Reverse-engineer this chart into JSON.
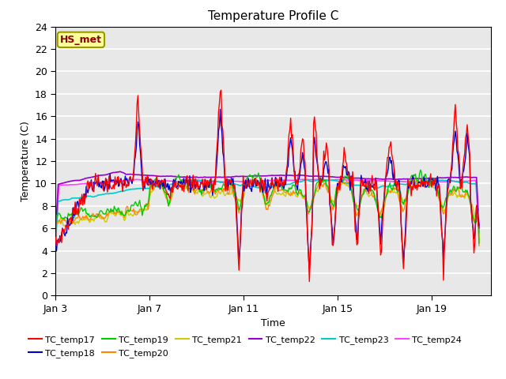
{
  "title": "Temperature Profile C",
  "xlabel": "Time",
  "ylabel": "Temperature (C)",
  "ylim": [
    0,
    24
  ],
  "yticks": [
    0,
    2,
    4,
    6,
    8,
    10,
    12,
    14,
    16,
    18,
    20,
    22,
    24
  ],
  "xtick_labels": [
    "Jan 3",
    "Jan 7",
    "Jan 11",
    "Jan 15",
    "Jan 19"
  ],
  "xtick_vals": [
    0,
    4,
    8,
    12,
    16
  ],
  "xlim": [
    0,
    18.5
  ],
  "annotation_text": "HS_met",
  "annotation_color": "#8B0000",
  "annotation_bg": "#FFFF99",
  "annotation_border": "#999900",
  "bg_color": "#E8E8E8",
  "series_colors": {
    "TC_temp17": "#FF0000",
    "TC_temp18": "#0000CC",
    "TC_temp19": "#00CC00",
    "TC_temp20": "#FF8800",
    "TC_temp21": "#CCCC00",
    "TC_temp22": "#9900CC",
    "TC_temp23": "#00CCCC",
    "TC_temp24": "#FF44FF"
  },
  "legend_order": [
    "TC_temp17",
    "TC_temp18",
    "TC_temp19",
    "TC_temp20",
    "TC_temp21",
    "TC_temp22",
    "TC_temp23",
    "TC_temp24"
  ],
  "n_points": 500,
  "seed": 7
}
